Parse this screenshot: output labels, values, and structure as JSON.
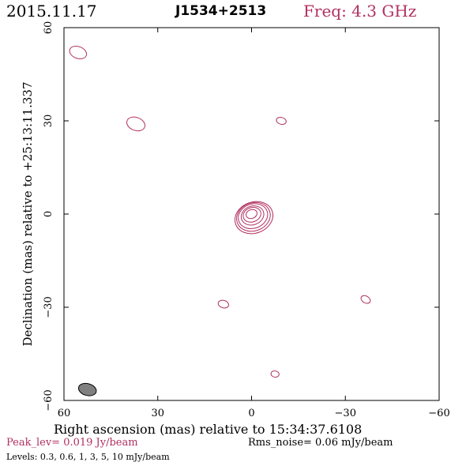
{
  "header": {
    "date": "2015.11.17",
    "source": "J1534+2513",
    "freq": "Freq: 4.3 GHz"
  },
  "axes": {
    "xlabel": "Right ascension (mas) relative to 15:34:37.6108",
    "ylabel": "Declination (mas) relative to +25:13:11.337",
    "x_range": [
      60,
      -60
    ],
    "y_range": [
      -60,
      60
    ],
    "x_ticks": [
      "60",
      "30",
      "0",
      "−30",
      "−60"
    ],
    "y_ticks": [
      "60",
      "30",
      "0",
      "−30",
      "−60"
    ]
  },
  "footer": {
    "peak": "Peak_lev=  0.019 Jy/beam",
    "rms": "Rms_noise= 0.06 mJy/beam",
    "levels": "Levels: 0.3, 0.6,   1,   3,   5,  10 mJy/beam"
  },
  "colors": {
    "contour": "#b03060",
    "header_freq": "#b03060",
    "beam_fill": "#808080"
  },
  "chart_data": {
    "type": "contour",
    "x_unit": "mas",
    "y_unit": "mas",
    "main_component": {
      "x": 0,
      "y": 0,
      "levels_mJy": [
        0.3,
        0.6,
        1,
        3,
        5,
        10
      ],
      "semi_axes_mas": [
        [
          6.2,
          5.0
        ],
        [
          5.5,
          4.5
        ],
        [
          4.8,
          3.9
        ],
        [
          3.7,
          3.0
        ],
        [
          2.9,
          2.3
        ],
        [
          1.8,
          1.4
        ]
      ],
      "pa_deg": -20
    },
    "noise_blobs": [
      {
        "x": 55.5,
        "y": 52,
        "a": 2.8,
        "b": 1.9,
        "pa": 20
      },
      {
        "x": 37,
        "y": 29,
        "a": 3.0,
        "b": 2.1,
        "pa": 20
      },
      {
        "x": -9.5,
        "y": 30,
        "a": 1.6,
        "b": 1.1,
        "pa": 15
      },
      {
        "x": 9,
        "y": -29,
        "a": 1.7,
        "b": 1.2,
        "pa": 15
      },
      {
        "x": -36.5,
        "y": -27.5,
        "a": 1.6,
        "b": 1.1,
        "pa": 30
      },
      {
        "x": -7.5,
        "y": -51.5,
        "a": 1.3,
        "b": 1.0,
        "pa": 10
      }
    ],
    "beam": {
      "x": 52.5,
      "y": -56.5,
      "a": 2.9,
      "b": 1.9,
      "pa": 15
    }
  }
}
